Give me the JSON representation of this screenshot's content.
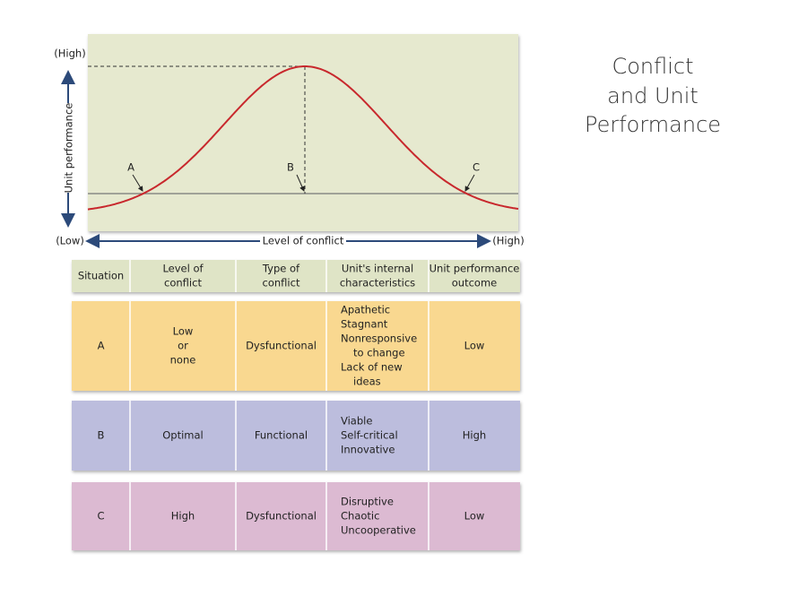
{
  "title": {
    "lines": [
      "Conflict",
      "and Unit",
      "Performance"
    ]
  },
  "diagram": {
    "y_axis": {
      "label": "Unit performance",
      "high": "(High)"
    },
    "x_axis": {
      "label": "Level of conflict",
      "low": "(Low)",
      "high": "(High)"
    },
    "points": [
      "A",
      "B",
      "C"
    ]
  },
  "table": {
    "header": [
      [
        "Situation"
      ],
      [
        "Level of",
        "conflict"
      ],
      [
        "Type of",
        "conflict"
      ],
      [
        "Unit's internal",
        "characteristics"
      ],
      [
        "Unit performance",
        "outcome"
      ]
    ],
    "rows": [
      [
        [
          "A"
        ],
        [
          "Low",
          "or",
          "none"
        ],
        [
          "Dysfunctional"
        ],
        [
          "Apathetic",
          "Stagnant",
          "Nonresponsive",
          "to change",
          "Lack of new",
          "ideas"
        ],
        [
          "Low"
        ]
      ],
      [
        [
          "B"
        ],
        [
          "Optimal"
        ],
        [
          "Functional"
        ],
        [
          "Viable",
          "Self-critical",
          "Innovative"
        ],
        [
          "High"
        ]
      ],
      [
        [
          "C"
        ],
        [
          "High"
        ],
        [
          "Dysfunctional"
        ],
        [
          "Disruptive",
          "Chaotic",
          "Uncooperative"
        ],
        [
          "Low"
        ]
      ]
    ]
  }
}
